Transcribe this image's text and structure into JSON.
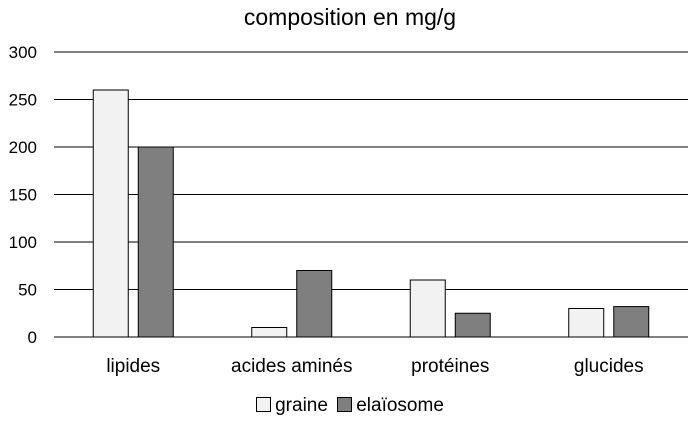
{
  "chart_data": {
    "type": "bar",
    "title": "composition en mg/g",
    "categories": [
      "lipides",
      "acides aminés",
      "protéines",
      "glucides"
    ],
    "series": [
      {
        "name": "graine",
        "color": "#f2f2f2",
        "values": [
          260,
          10,
          60,
          30
        ]
      },
      {
        "name": "elaïosome",
        "color": "#7f7f7f",
        "values": [
          200,
          70,
          25,
          32
        ]
      }
    ],
    "ylim": [
      0,
      300
    ],
    "yticks": [
      0,
      50,
      100,
      150,
      200,
      250,
      300
    ],
    "grid": true,
    "legend_position": "bottom"
  }
}
